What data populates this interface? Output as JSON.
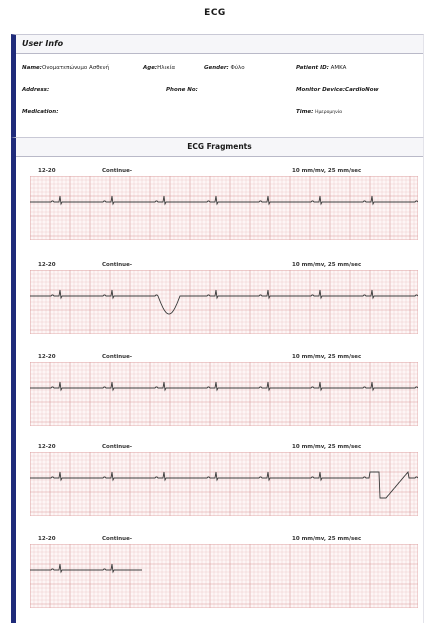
{
  "page": {
    "title": "ECG"
  },
  "user_info": {
    "header": "User Info",
    "name_label": "Name:",
    "name_value": "Ονοματεπώνυμο Ασθενή",
    "age_label": "Age:",
    "age_value": "Ηλικία",
    "gender_label": "Gender:",
    "gender_value": "Φύλο",
    "patient_id_label": "Patient ID:",
    "patient_id_value": "AMKA",
    "address_label": "Address:",
    "phone_label": "Phone No:",
    "monitor_label": "Monitor Device:",
    "monitor_value": "CardioNow",
    "medication_label": "Medication:",
    "time_label": "Time:",
    "time_value": "Ημερομηνία"
  },
  "fragments": {
    "header": "ECG Fragments",
    "strips": [
      {
        "lead": "12-20",
        "mode": "Continue-",
        "scale": "10 mm/mv,  25 mm/sec",
        "trace": "normal"
      },
      {
        "lead": "12-20",
        "mode": "Continue-",
        "scale": "10 mm/mv,  25 mm/sec",
        "trace": "dip"
      },
      {
        "lead": "12-20",
        "mode": "Continue-",
        "scale": "10 mm/mv,  25 mm/sec",
        "trace": "normal"
      },
      {
        "lead": "12-20",
        "mode": "Continue-",
        "scale": "10 mm/mv,  25 mm/sec",
        "trace": "spike"
      },
      {
        "lead": "12-20",
        "mode": "Continue-",
        "scale": "10 mm/mv,  25 mm/sec",
        "trace": "partial"
      }
    ]
  },
  "colors": {
    "grid": "#e7b8b8",
    "grid_major": "#d99a9a",
    "trace": "#3a3a3a",
    "accent": "#1f2b7a"
  }
}
